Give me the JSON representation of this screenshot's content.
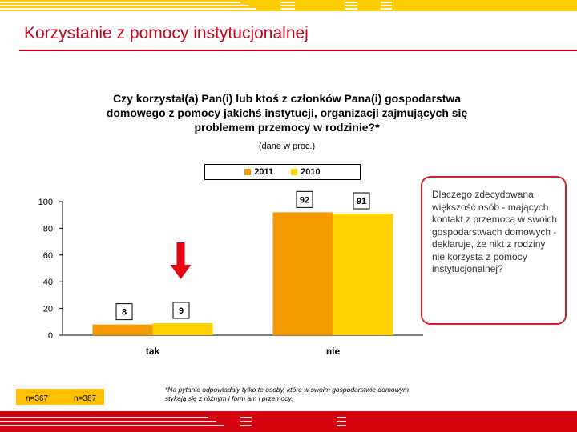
{
  "slide": {
    "title": "Korzystanie z pomocy instytucjonalnej",
    "colors": {
      "brand_red": "#d40511",
      "brand_yellow": "#ffcc00",
      "accent_bar_2011": "#f59a00",
      "accent_bar_2010": "#ffd200"
    }
  },
  "chart_data": {
    "type": "bar",
    "title": "Czy korzystał(a) Pan(i) lub ktoś z członków Pana(i) gospodarstwa domowego z pomocy jakichś instytucji, organizacji zajmujących się problemem przemocy w rodzinie?*",
    "subtitle": "(dane w proc.)",
    "categories": [
      "tak",
      "nie"
    ],
    "series": [
      {
        "name": "2011",
        "values": [
          8,
          92
        ],
        "color": "#f59a00"
      },
      {
        "name": "2010",
        "values": [
          9,
          91
        ],
        "color": "#ffd200"
      }
    ],
    "ylim": [
      0,
      100
    ],
    "yticks": [
      "0",
      "20",
      "40",
      "60",
      "80",
      "100"
    ],
    "legend": "top-center",
    "grid": false,
    "data_labels": true,
    "annotation": "red-down-arrow"
  },
  "callout": {
    "text": "Dlaczego zdecydowana większość osób - mających kontakt z przemocą w swoich gospodarstwach domowych - deklaruje, że nikt z rodziny nie korzysta z pomocy instytucjonalnej?"
  },
  "notes": {
    "n_2011": "n=367",
    "n_2010": "n=387",
    "footnote": "*Na pytanie odpowiadały tylko te osoby, które w swoim gospodarstwie domowym stykają się z różnym i form am i przemocy."
  }
}
